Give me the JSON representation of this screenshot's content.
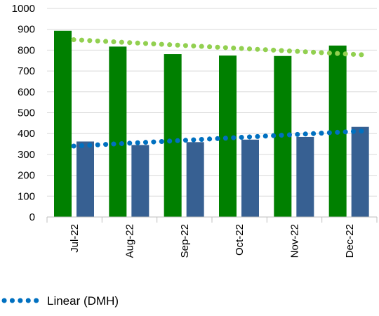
{
  "chart_data": {
    "type": "bar",
    "categories": [
      "Jul-22",
      "Aug-22",
      "Sep-22",
      "Oct-22",
      "Nov-22",
      "Dec-22"
    ],
    "ylim": [
      0,
      1000
    ],
    "yticks": [
      0,
      100,
      200,
      300,
      400,
      500,
      600,
      700,
      800,
      900,
      1000
    ],
    "grid": true,
    "series": [
      {
        "color": "#008000",
        "values": [
          893,
          817,
          781,
          774,
          772,
          822
        ]
      },
      {
        "color": "#376092",
        "values": [
          362,
          345,
          359,
          371,
          384,
          432
        ]
      }
    ],
    "trendlines": [
      {
        "color": "#92D050",
        "start": 850,
        "end": 778
      },
      {
        "name": "Linear (DMH)",
        "color": "#0070C0",
        "start": 340,
        "end": 412
      }
    ],
    "legend": {
      "position": "bottom-left",
      "label": "Linear (DMH)",
      "color": "#0070C0"
    }
  }
}
